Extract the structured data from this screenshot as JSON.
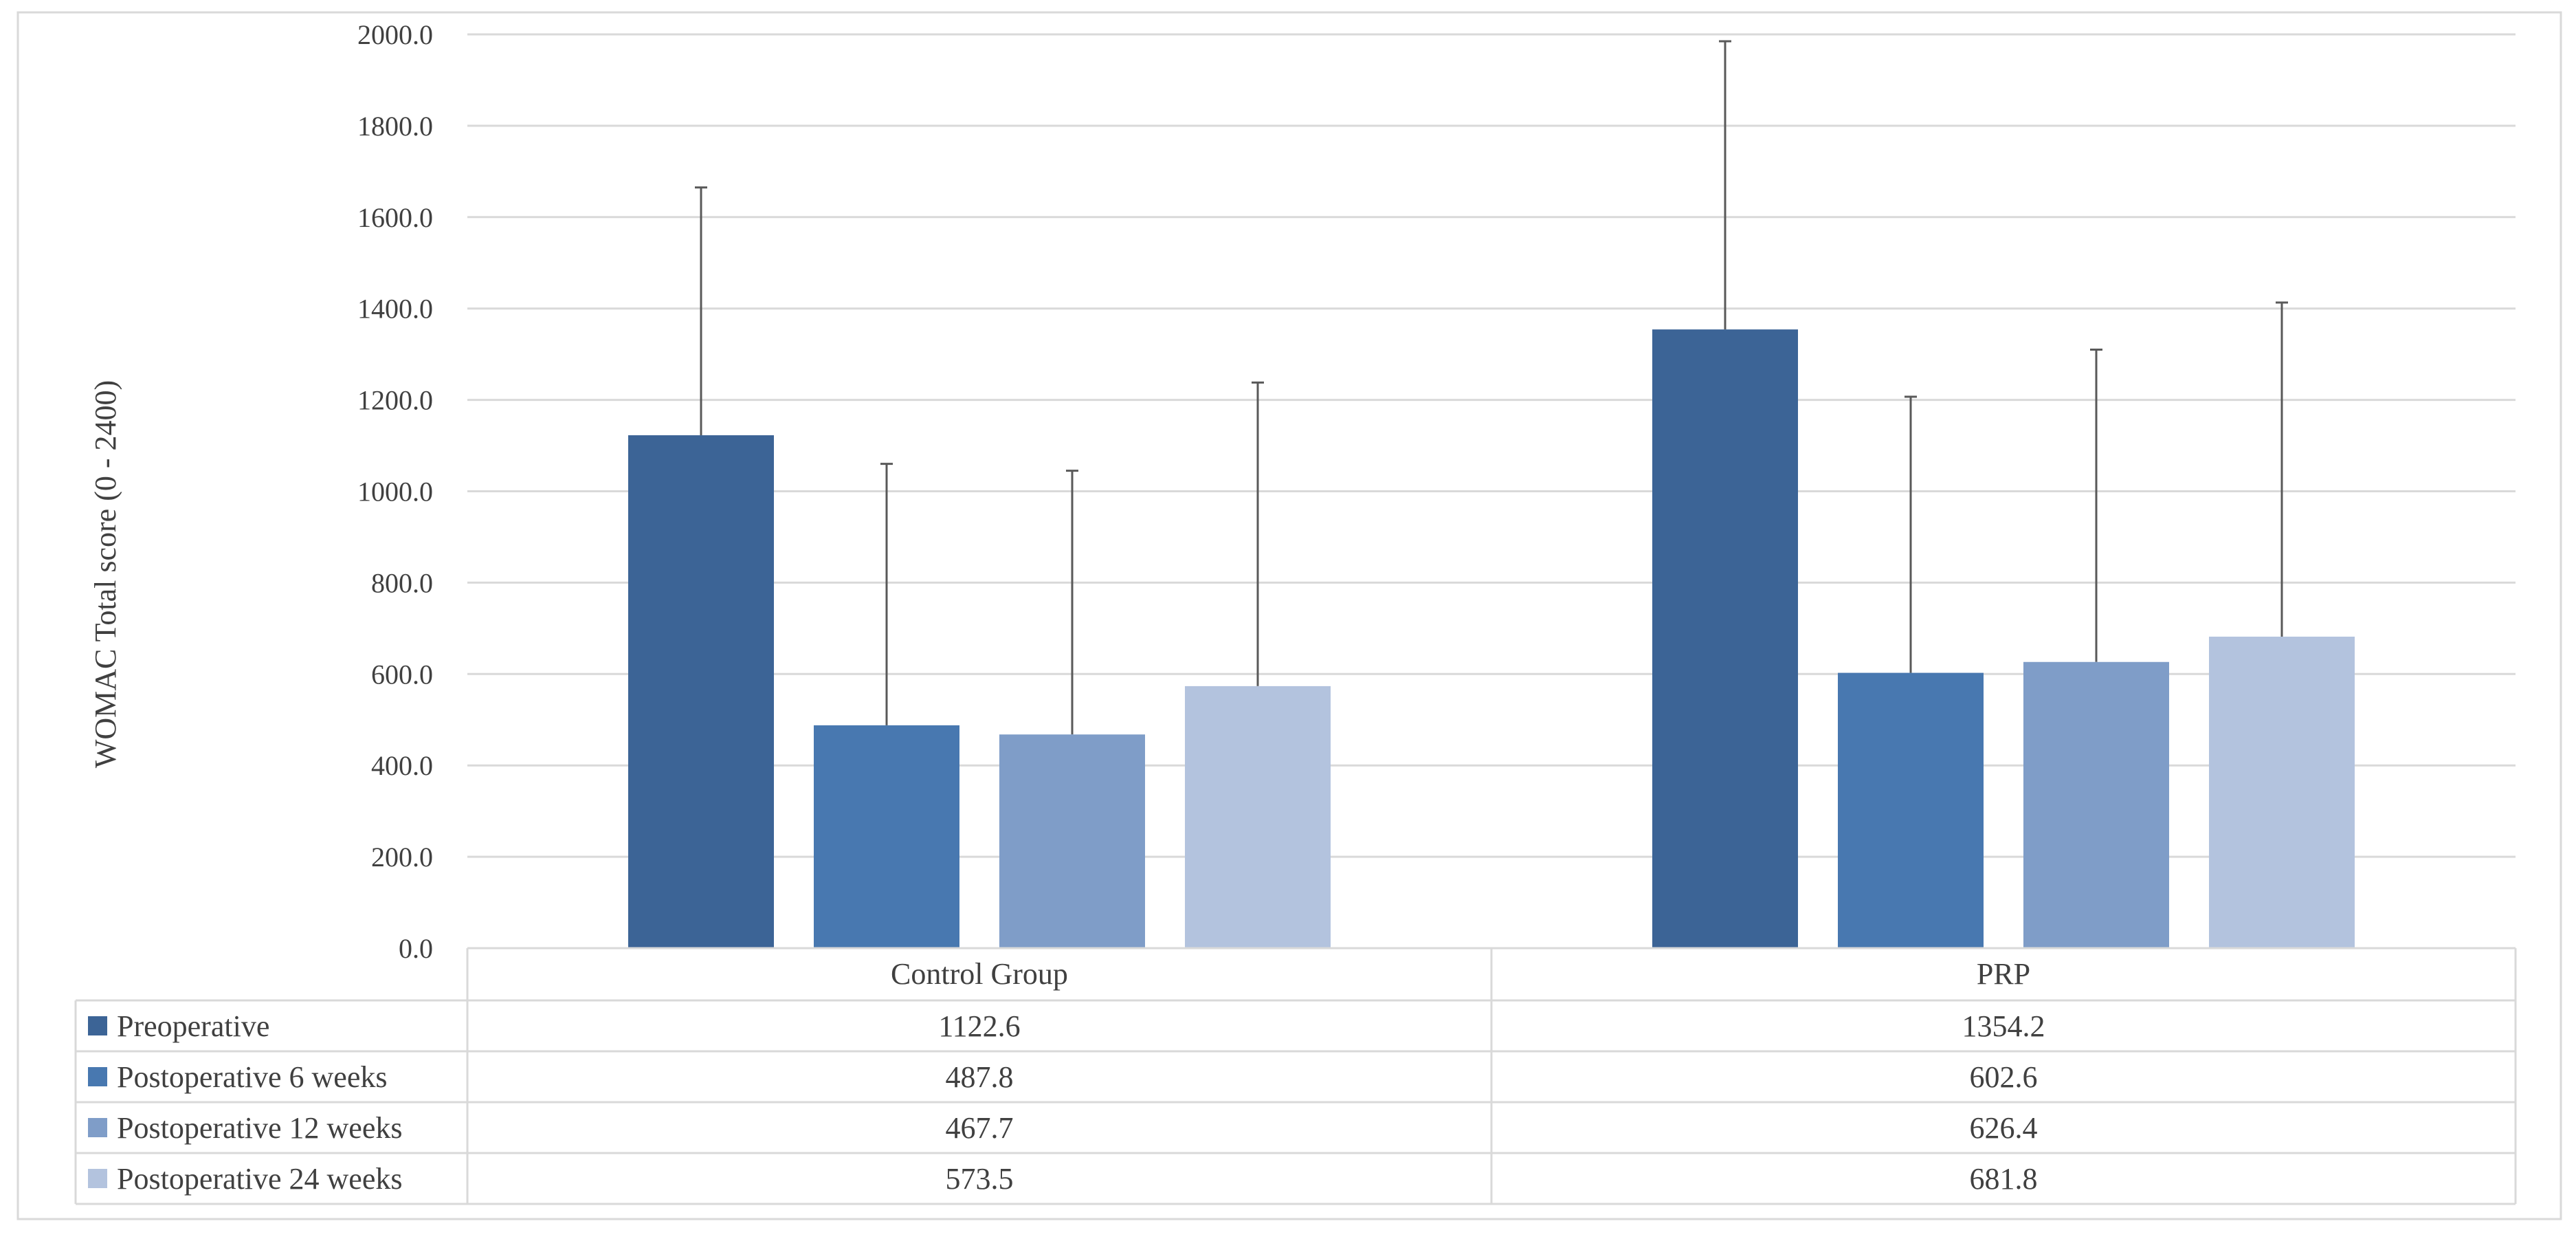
{
  "chart_data": {
    "type": "bar",
    "title": "",
    "ylabel": "WOMAC Total score  (0 -  2400)",
    "xlabel": "",
    "categories": [
      "Control Group",
      "PRP"
    ],
    "ylim": [
      0,
      2000
    ],
    "yticks": [
      "0.0",
      "200.0",
      "400.0",
      "600.0",
      "800.0",
      "1000.0",
      "1200.0",
      "1400.0",
      "1600.0",
      "1800.0",
      "2000.0"
    ],
    "grid": true,
    "legend": "data-table-below",
    "series": [
      {
        "name": "Preoperative",
        "color": "#3C6496",
        "values": [
          1122.6,
          1354.2
        ],
        "labels": [
          "1122.6",
          "1354.2"
        ],
        "error_upper": [
          1665,
          1985
        ]
      },
      {
        "name": "Postoperative 6 weeks",
        "color": "#4878B0",
        "values": [
          487.8,
          602.6
        ],
        "labels": [
          "487.8",
          "602.6"
        ],
        "error_upper": [
          1060,
          1207
        ]
      },
      {
        "name": "Postoperative 12 weeks",
        "color": "#7F9DC8",
        "values": [
          467.7,
          626.4
        ],
        "labels": [
          "467.7",
          "626.4"
        ],
        "error_upper": [
          1045,
          1310
        ]
      },
      {
        "name": "Postoperative 24 weeks",
        "color": "#B3C3DE",
        "values": [
          573.5,
          681.8
        ],
        "labels": [
          "573.5",
          "681.8"
        ],
        "error_upper": [
          1238,
          1413
        ]
      }
    ]
  }
}
